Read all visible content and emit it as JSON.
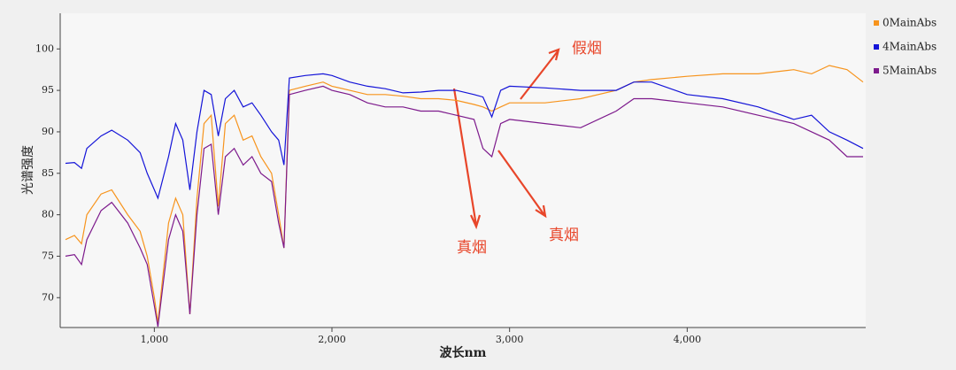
{
  "chart_data": {
    "type": "line",
    "x_label": "波长nm",
    "y_label": "光谱强度",
    "x": [
      500,
      550,
      590,
      620,
      700,
      760,
      850,
      920,
      960,
      1000,
      1020,
      1080,
      1120,
      1160,
      1200,
      1240,
      1280,
      1320,
      1360,
      1400,
      1450,
      1500,
      1550,
      1600,
      1660,
      1700,
      1730,
      1760,
      1850,
      1950,
      2000,
      2100,
      2200,
      2300,
      2400,
      2500,
      2600,
      2700,
      2800,
      2850,
      2900,
      2950,
      3000,
      3200,
      3400,
      3600,
      3700,
      3800,
      4000,
      4200,
      4400,
      4600,
      4700,
      4800,
      4900,
      4990
    ],
    "series": [
      {
        "name": "0MainAbs",
        "color": "#f7941d",
        "values": [
          77,
          77.5,
          76.5,
          80,
          82.5,
          83,
          80,
          78,
          75,
          70,
          67,
          79,
          82,
          80,
          68,
          82,
          91,
          92,
          81,
          91,
          92,
          89,
          89.5,
          87,
          85,
          80,
          76,
          95,
          95.5,
          96,
          95.5,
          95,
          94.5,
          94.5,
          94.3,
          94,
          94,
          93.8,
          93.3,
          93,
          92.5,
          93,
          93.5,
          93.5,
          94,
          95,
          96,
          96.3,
          96.7,
          97,
          97,
          97.5,
          97,
          98,
          97.5,
          96
        ]
      },
      {
        "name": "4MainAbs",
        "color": "#1414d8",
        "values": [
          86.2,
          86.3,
          85.6,
          88,
          89.5,
          90.2,
          89,
          87.5,
          85,
          83,
          82,
          87,
          91,
          89,
          83,
          90,
          95,
          94.5,
          89.5,
          94,
          95,
          93,
          93.5,
          92,
          90,
          89,
          86,
          96.5,
          96.8,
          97,
          96.8,
          96,
          95.5,
          95.2,
          94.7,
          94.8,
          95,
          95,
          94.5,
          94.2,
          91.8,
          95,
          95.5,
          95.3,
          95,
          95,
          96,
          96,
          94.5,
          94,
          93,
          91.5,
          92,
          90,
          89,
          88
        ]
      },
      {
        "name": "5MainAbs",
        "color": "#7d1a8c",
        "values": [
          75,
          75.2,
          74,
          77,
          80.5,
          81.5,
          79,
          76,
          74,
          69,
          66.5,
          77,
          80,
          78,
          68,
          80,
          88,
          88.5,
          80,
          87,
          88,
          86,
          87,
          85,
          84,
          79,
          76,
          94.5,
          95,
          95.5,
          95,
          94.5,
          93.5,
          93,
          93,
          92.5,
          92.5,
          92,
          91.5,
          88,
          87,
          91,
          91.5,
          91,
          90.5,
          92.5,
          94,
          94,
          93.5,
          93,
          92,
          91,
          90,
          89,
          87,
          87
        ]
      }
    ],
    "xlim": [
      470,
      5005
    ],
    "ylim": [
      66.4,
      104.3
    ],
    "xticks": [
      {
        "value": 1000,
        "label": "1,000"
      },
      {
        "value": 2000,
        "label": "2,000"
      },
      {
        "value": 3000,
        "label": "3,000"
      },
      {
        "value": 4000,
        "label": "4,000"
      }
    ],
    "yticks": [
      70,
      75,
      80,
      85,
      90,
      95,
      100
    ],
    "legend": "right",
    "annotations": [
      "假烟",
      "真烟",
      "真烟"
    ]
  }
}
